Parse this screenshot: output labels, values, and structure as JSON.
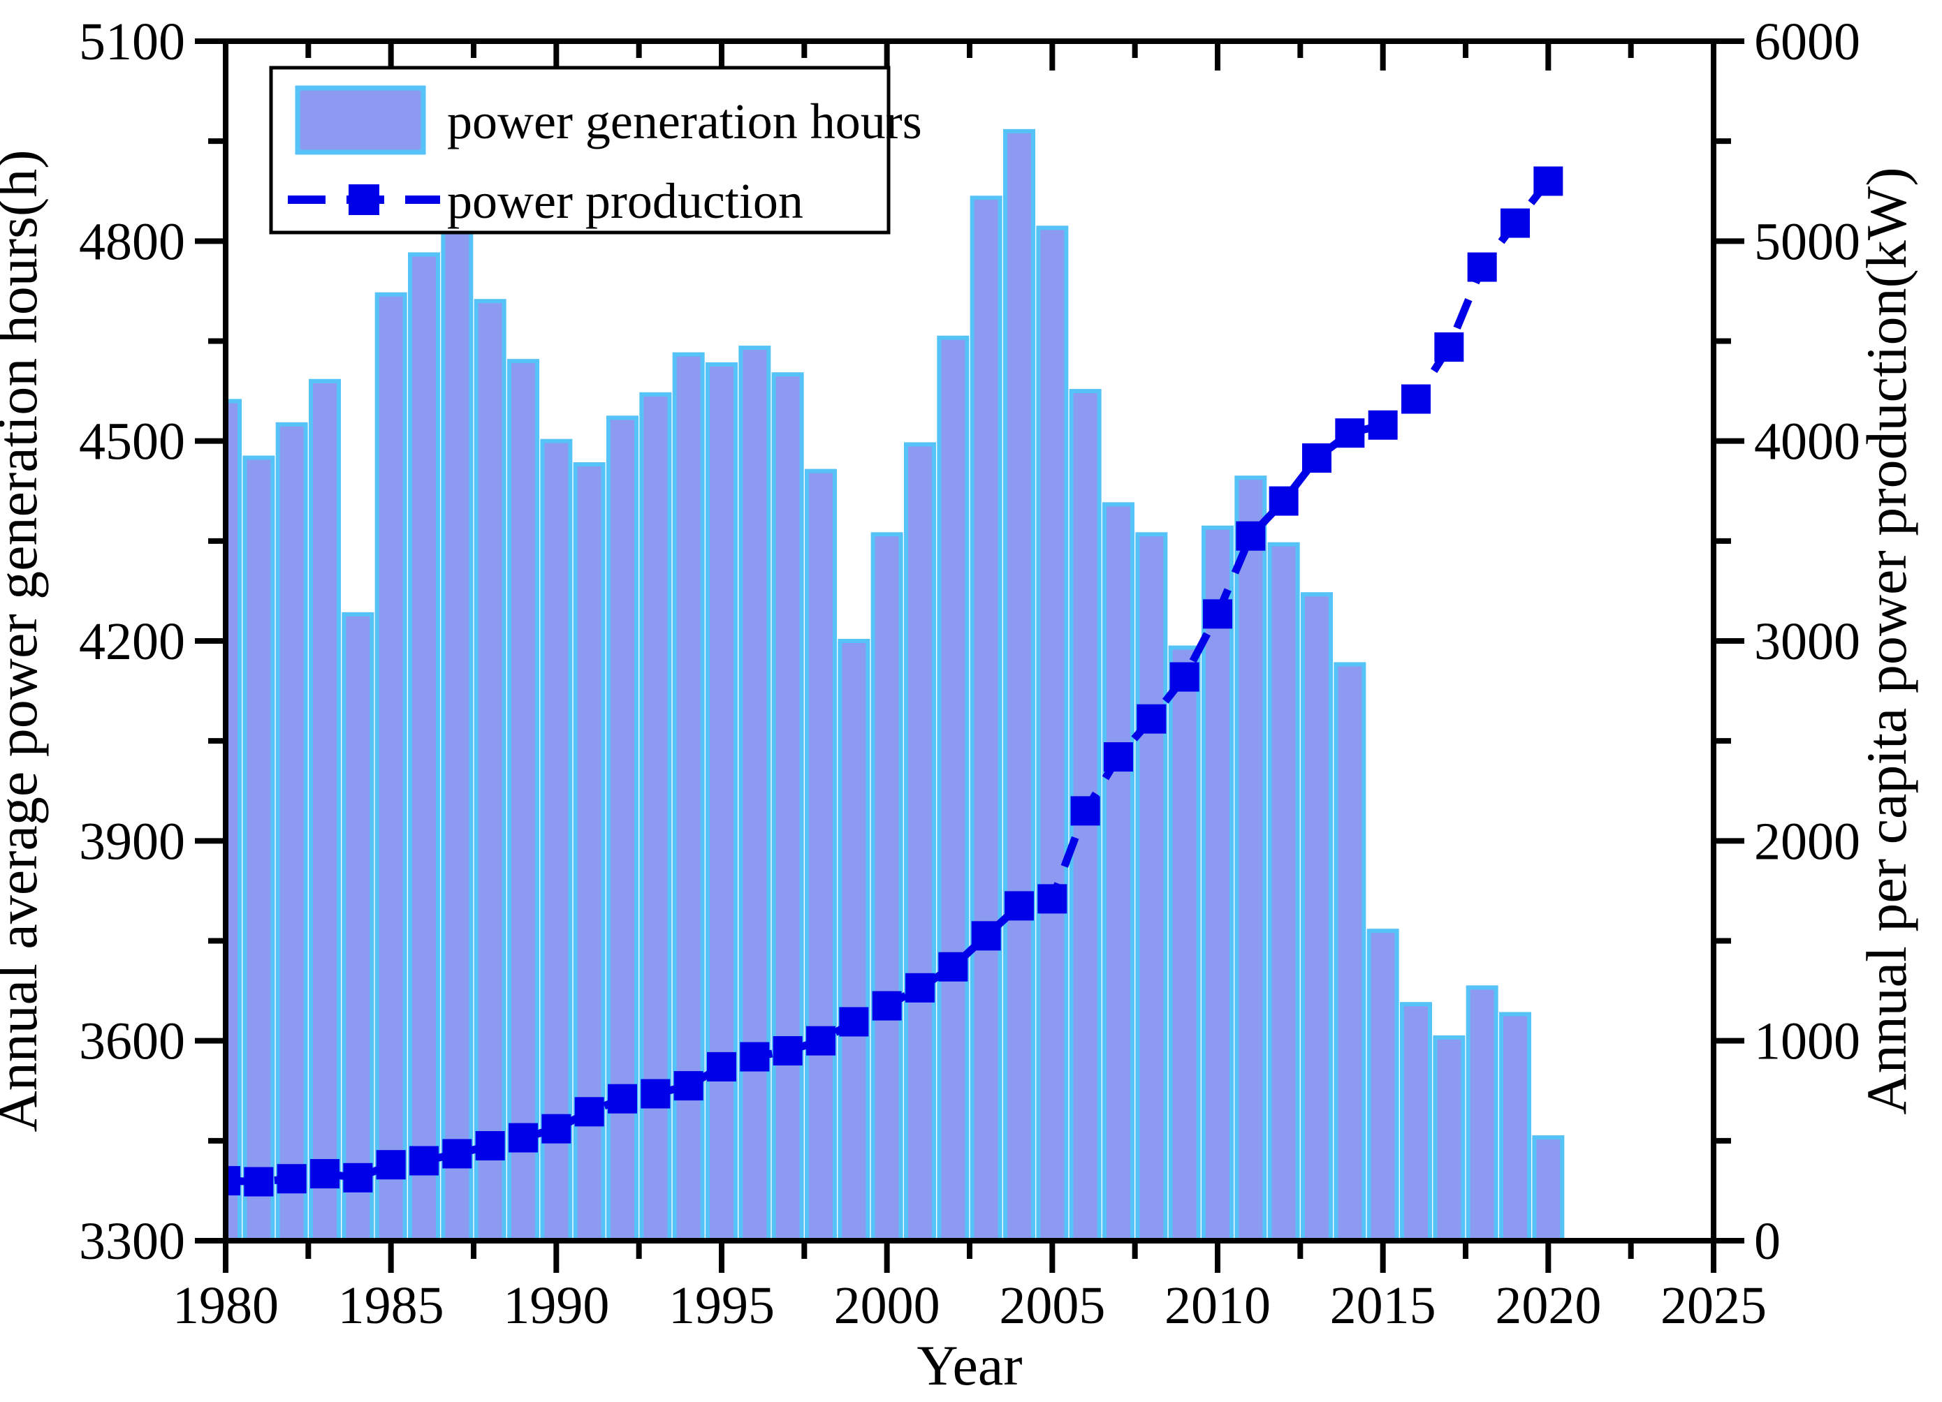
{
  "figure": {
    "background": "#ffffff"
  },
  "colors": {
    "bar_fill": "#8d9af1",
    "bar_edge": "#55c3f7",
    "line": "#0000e8",
    "axis": "#000000",
    "legend_border": "#000000",
    "legend_fill": "#ffffff"
  },
  "legend": {
    "position": "top-left",
    "bar_label": "power generation hours",
    "line_label": "power production"
  },
  "chart_data": {
    "type": "bar",
    "title": "",
    "xlabel": "Year",
    "grid": false,
    "x": [
      1980,
      1981,
      1982,
      1983,
      1984,
      1985,
      1986,
      1987,
      1988,
      1989,
      1990,
      1991,
      1992,
      1993,
      1994,
      1995,
      1996,
      1997,
      1998,
      1999,
      2000,
      2001,
      2002,
      2003,
      2004,
      2005,
      2006,
      2007,
      2008,
      2009,
      2010,
      2011,
      2012,
      2013,
      2014,
      2015,
      2016,
      2017,
      2018,
      2019,
      2020
    ],
    "series": [
      {
        "name": "power generation hours",
        "type": "bar",
        "yaxis": "left",
        "values": [
          4560,
          4475,
          4525,
          4590,
          4240,
          4720,
          4780,
          4830,
          4710,
          4620,
          4500,
          4465,
          4535,
          4570,
          4630,
          4615,
          4640,
          4600,
          4455,
          4200,
          4360,
          4495,
          4655,
          4865,
          4965,
          4820,
          4575,
          4405,
          4360,
          4190,
          4370,
          4445,
          4345,
          4270,
          4165,
          3765,
          3655,
          3605,
          3680,
          3640,
          3455
        ]
      },
      {
        "name": "power production",
        "type": "line",
        "yaxis": "right",
        "values": [
          300,
          295,
          310,
          335,
          315,
          380,
          400,
          435,
          475,
          515,
          560,
          645,
          710,
          735,
          775,
          870,
          920,
          950,
          1000,
          1095,
          1175,
          1265,
          1370,
          1525,
          1675,
          1710,
          2150,
          2420,
          2610,
          2820,
          3135,
          3525,
          3700,
          3915,
          4040,
          4080,
          4210,
          4470,
          4870,
          5090,
          5300
        ]
      }
    ],
    "x_axis": {
      "min": 1980,
      "max": 2025,
      "major_step": 5,
      "minor_step": 2.5,
      "tick_labels": [
        "1980",
        "1985",
        "1990",
        "1995",
        "2000",
        "2005",
        "2010",
        "2015",
        "2020",
        "2025"
      ]
    },
    "left_axis": {
      "label": "Annual average power generation hours(h)",
      "min": 3300,
      "max": 5100,
      "major_step": 300,
      "minor_step": 150,
      "tick_labels": [
        "3300",
        "3600",
        "3900",
        "4200",
        "4500",
        "4800",
        "5100"
      ]
    },
    "right_axis": {
      "label": "Annual per capita power production(kW)",
      "min": 0,
      "max": 6000,
      "major_step": 1000,
      "minor_step": 500,
      "tick_labels": [
        "0",
        "1000",
        "2000",
        "3000",
        "4000",
        "5000",
        "6000"
      ]
    }
  }
}
